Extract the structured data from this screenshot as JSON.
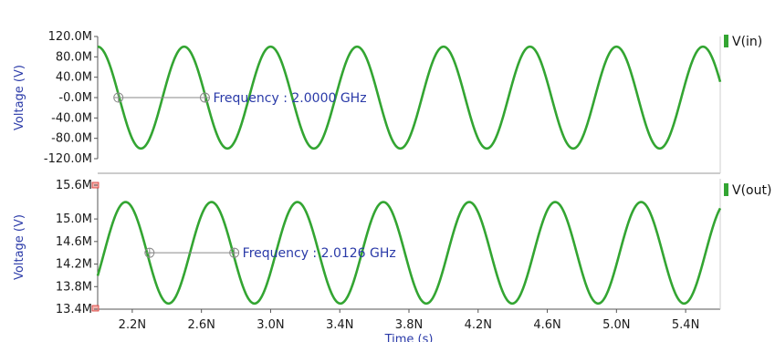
{
  "colors": {
    "trace": "#33a532",
    "axis_label": "#2a3aa8",
    "marker": "#8a8a8a",
    "frame": "#555555",
    "corner_marker": "#d9302c"
  },
  "chart_data": [
    {
      "type": "line",
      "ylabel": "Voltage (V)",
      "ylim": [
        -120,
        120
      ],
      "y_unit": "mV",
      "yticks": [
        "120.0M",
        "80.0M",
        "40.0M",
        "-0.0M",
        "-40.0M",
        "-80.0M",
        "-120.0M"
      ],
      "yticks_values": [
        120,
        80,
        40,
        0,
        -40,
        -80,
        -120
      ],
      "legend": "V(in)",
      "series": [
        {
          "name": "V(in)",
          "waveform": "sine",
          "amplitude": 100,
          "offset": 0,
          "frequency_ghz": 2.0,
          "phase_deg": 90
        }
      ],
      "annotation": {
        "text": "Frequency : 2.0000 GHz",
        "from_x": 2.12,
        "to_x": 2.62,
        "y": 0
      }
    },
    {
      "type": "line",
      "ylabel": "Voltage (V)",
      "ylim": [
        13.4,
        15.6
      ],
      "y_unit": "mV",
      "yticks": [
        "15.6M",
        "15.0M",
        "14.6M",
        "14.2M",
        "13.8M",
        "13.4M"
      ],
      "yticks_values": [
        15.6,
        15.0,
        14.6,
        14.2,
        13.8,
        13.4
      ],
      "legend": "V(out)",
      "series": [
        {
          "name": "V(out)",
          "waveform": "sine",
          "amplitude": 0.9,
          "offset": 14.4,
          "frequency_ghz": 2.0126,
          "phase_deg": -36
        }
      ],
      "annotation": {
        "text": "Frequency : 2.0126 GHz",
        "from_x": 2.3,
        "to_x": 2.79,
        "y": 14.4
      }
    }
  ],
  "x_axis": {
    "xlabel": "Time (s)",
    "xlim": [
      2.0,
      5.6
    ],
    "xticks": [
      "2.2N",
      "2.6N",
      "3.0N",
      "3.4N",
      "3.8N",
      "4.2N",
      "4.6N",
      "5.0N",
      "5.4N"
    ],
    "xticks_values": [
      2.2,
      2.6,
      3.0,
      3.4,
      3.8,
      4.2,
      4.6,
      5.0,
      5.4
    ],
    "x_unit": "ns"
  }
}
